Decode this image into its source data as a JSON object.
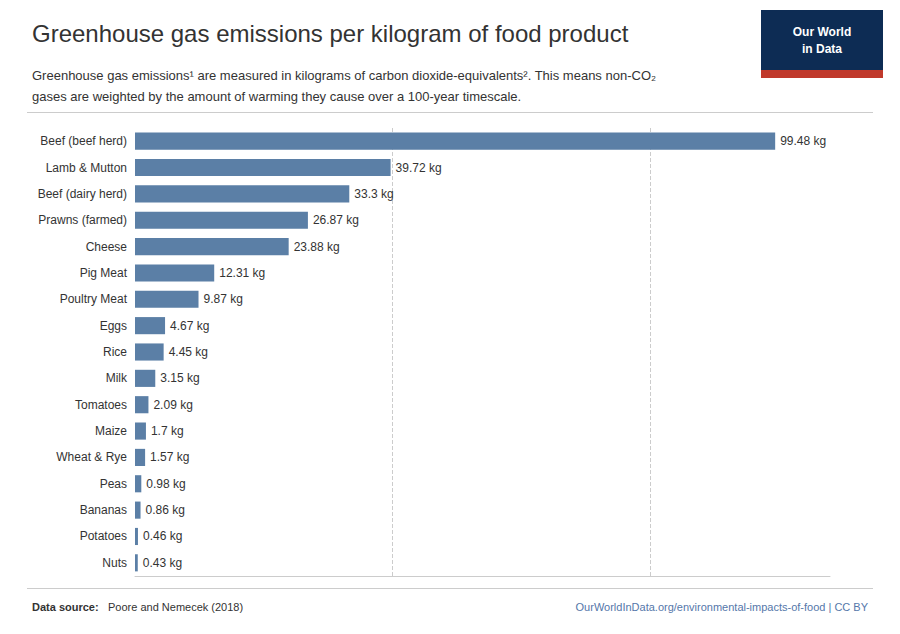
{
  "chart_data": {
    "type": "bar",
    "orientation": "horizontal",
    "title": "Greenhouse gas emissions per kilogram of food product",
    "subtitle": [
      "Greenhouse gas emissions¹ are measured in kilograms of carbon dioxide-equivalents². This means non-CO₂",
      "gases are weighted by the amount of warming they cause over a 100-year timescale."
    ],
    "annotations": [
      "Our World\nin Data",
      "Data source:",
      "Poore and Nemecek (2018)",
      "OurWorldInData.org/environmental-impacts-of-food | CC BY"
    ],
    "categories": [
      "Beef (beef herd)",
      "Lamb & Mutton",
      "Beef (dairy herd)",
      "Prawns (farmed)",
      "Cheese",
      "Pig Meat",
      "Poultry Meat",
      "Eggs",
      "Rice",
      "Milk",
      "Tomatoes",
      "Maize",
      "Wheat & Rye",
      "Peas",
      "Bananas",
      "Potatoes",
      "Nuts"
    ],
    "values": [
      99.48,
      39.72,
      33.3,
      26.87,
      23.88,
      12.31,
      9.87,
      4.67,
      4.45,
      3.15,
      2.09,
      1.7,
      1.57,
      0.98,
      0.86,
      0.46,
      0.43
    ],
    "value_labels": [
      "99.48 kg",
      "39.72 kg",
      "33.3 kg",
      "26.87 kg",
      "23.88 kg",
      "12.31 kg",
      "9.87 kg",
      "4.67 kg",
      "4.45 kg",
      "3.15 kg",
      "2.09 kg",
      "1.7 kg",
      "1.57 kg",
      "0.98 kg",
      "0.86 kg",
      "0.46 kg",
      "0.43 kg"
    ],
    "data_labels": true,
    "color": "#5b7fa6",
    "xlim": [
      0,
      108
    ],
    "xticks": [
      40,
      80
    ],
    "grid": true,
    "tick_labels": "y"
  }
}
